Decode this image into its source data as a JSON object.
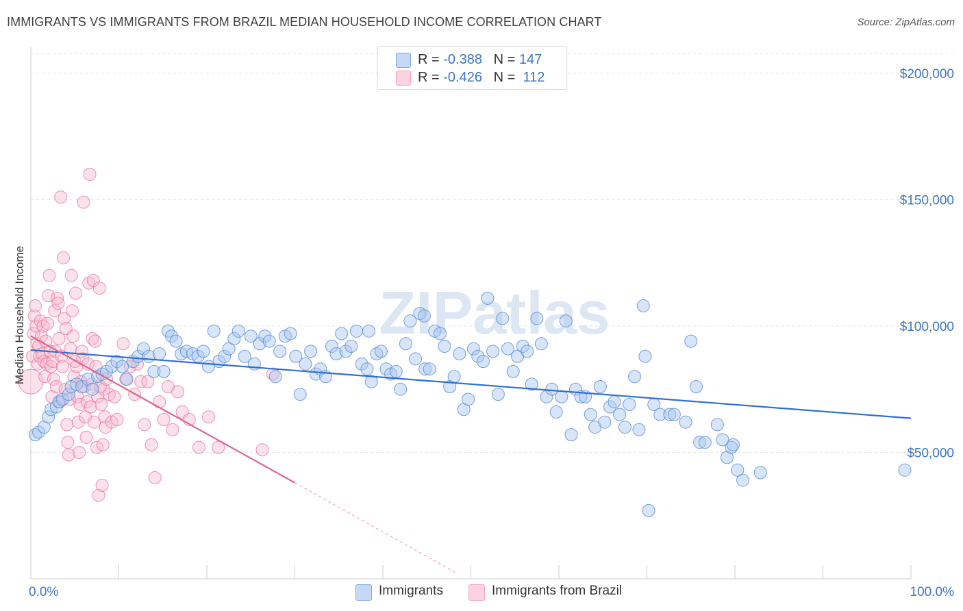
{
  "title": "IMMIGRANTS VS IMMIGRANTS FROM BRAZIL MEDIAN HOUSEHOLD INCOME CORRELATION CHART",
  "source": "Source: ZipAtlas.com",
  "watermark": "ZIPatlas",
  "legend": {
    "rows": [
      {
        "r_label": "R = ",
        "r_value": "-0.388",
        "n_label": "N = ",
        "n_value": "147",
        "color": "#7ea9e8"
      },
      {
        "r_label": "R = ",
        "r_value": "-0.426",
        "n_label": "N = ",
        "n_value": "112",
        "color": "#f3a3bd"
      }
    ]
  },
  "bottom_legend": [
    {
      "label": "Immigrants",
      "color": "#7ea9e8"
    },
    {
      "label": "Immigrants from Brazil",
      "color": "#f3a3bd"
    }
  ],
  "colors": {
    "blue_fill": "#a9c6f0",
    "blue_stroke": "#5b8fd8",
    "blue_line": "#2f6fcf",
    "pink_fill": "#f7bccf",
    "pink_stroke": "#e8789f",
    "pink_line": "#e0668f",
    "axis_label": "#3b76c6",
    "grid": "#e3e3e3"
  },
  "chart_data": {
    "type": "scatter",
    "title": "IMMIGRANTS VS IMMIGRANTS FROM BRAZIL MEDIAN HOUSEHOLD INCOME CORRELATION CHART",
    "xlabel": "",
    "ylabel": "Median Household Income",
    "xlim": [
      0,
      100
    ],
    "ylim": [
      0,
      210000
    ],
    "x_tick_labels": [
      "0.0%",
      "100.0%"
    ],
    "y_ticks": [
      50000,
      100000,
      150000,
      200000
    ],
    "y_tick_labels": [
      "$50,000",
      "$100,000",
      "$150,000",
      "$200,000"
    ],
    "series": [
      {
        "name": "Immigrants",
        "R": -0.388,
        "N": 147,
        "trend": {
          "x0": 0,
          "y0": 90500,
          "x1": 100,
          "y1": 63500
        },
        "points": [
          [
            0.5,
            57000
          ],
          [
            0.9,
            58000
          ],
          [
            1.5,
            60000
          ],
          [
            2.0,
            64000
          ],
          [
            2.3,
            67000
          ],
          [
            2.9,
            68000
          ],
          [
            3.2,
            70000
          ],
          [
            3.6,
            71000
          ],
          [
            4.3,
            73000
          ],
          [
            4.6,
            76000
          ],
          [
            5.2,
            77000
          ],
          [
            5.8,
            76000
          ],
          [
            6.5,
            79000
          ],
          [
            7.0,
            75000
          ],
          [
            7.6,
            80000
          ],
          [
            8.1,
            81000
          ],
          [
            8.6,
            82000
          ],
          [
            9.2,
            84000
          ],
          [
            9.8,
            86000
          ],
          [
            10.4,
            84000
          ],
          [
            10.9,
            79000
          ],
          [
            11.6,
            86000
          ],
          [
            12.2,
            88000
          ],
          [
            12.8,
            91000
          ],
          [
            13.4,
            88000
          ],
          [
            14.0,
            82000
          ],
          [
            14.6,
            89000
          ],
          [
            15.1,
            82000
          ],
          [
            15.6,
            98000
          ],
          [
            16.0,
            96000
          ],
          [
            16.5,
            94000
          ],
          [
            17.1,
            89000
          ],
          [
            17.7,
            90000
          ],
          [
            18.4,
            89000
          ],
          [
            19.0,
            88000
          ],
          [
            19.6,
            90000
          ],
          [
            20.2,
            84000
          ],
          [
            20.8,
            98000
          ],
          [
            21.4,
            86000
          ],
          [
            22.0,
            88000
          ],
          [
            22.5,
            91000
          ],
          [
            23.1,
            95000
          ],
          [
            23.6,
            98000
          ],
          [
            24.3,
            88000
          ],
          [
            25.0,
            96000
          ],
          [
            25.4,
            85000
          ],
          [
            26.0,
            93000
          ],
          [
            26.6,
            96000
          ],
          [
            27.1,
            94000
          ],
          [
            27.8,
            80000
          ],
          [
            28.3,
            90000
          ],
          [
            28.9,
            96000
          ],
          [
            29.5,
            97000
          ],
          [
            30.1,
            88000
          ],
          [
            30.6,
            73000
          ],
          [
            31.2,
            85000
          ],
          [
            31.8,
            90000
          ],
          [
            32.4,
            81000
          ],
          [
            32.9,
            83000
          ],
          [
            33.5,
            80000
          ],
          [
            34.2,
            92000
          ],
          [
            34.7,
            89000
          ],
          [
            35.3,
            97000
          ],
          [
            35.8,
            90000
          ],
          [
            36.4,
            92000
          ],
          [
            37.0,
            98000
          ],
          [
            37.6,
            85000
          ],
          [
            38.2,
            83000
          ],
          [
            38.7,
            78000
          ],
          [
            39.3,
            89000
          ],
          [
            39.8,
            90000
          ],
          [
            40.4,
            83000
          ],
          [
            40.9,
            81000
          ],
          [
            41.5,
            82000
          ],
          [
            42.0,
            75000
          ],
          [
            42.6,
            93000
          ],
          [
            43.1,
            102000
          ],
          [
            43.7,
            87000
          ],
          [
            44.2,
            105000
          ],
          [
            44.8,
            83000
          ],
          [
            45.3,
            83000
          ],
          [
            45.9,
            98000
          ],
          [
            46.5,
            97000
          ],
          [
            47.0,
            92000
          ],
          [
            47.6,
            76000
          ],
          [
            48.1,
            80000
          ],
          [
            48.7,
            89000
          ],
          [
            49.2,
            67000
          ],
          [
            49.7,
            71000
          ],
          [
            50.3,
            91000
          ],
          [
            50.8,
            88000
          ],
          [
            51.4,
            86000
          ],
          [
            51.9,
            111000
          ],
          [
            52.5,
            90000
          ],
          [
            53.1,
            73000
          ],
          [
            53.6,
            103000
          ],
          [
            54.2,
            91000
          ],
          [
            54.8,
            82000
          ],
          [
            55.3,
            88000
          ],
          [
            55.9,
            92000
          ],
          [
            56.4,
            90000
          ],
          [
            56.9,
            77000
          ],
          [
            57.5,
            103000
          ],
          [
            58.0,
            93000
          ],
          [
            58.6,
            72000
          ],
          [
            59.2,
            75000
          ],
          [
            59.7,
            66000
          ],
          [
            60.3,
            72000
          ],
          [
            60.8,
            102000
          ],
          [
            61.4,
            57000
          ],
          [
            61.9,
            75000
          ],
          [
            62.5,
            72000
          ],
          [
            63.0,
            72000
          ],
          [
            63.6,
            65000
          ],
          [
            64.1,
            60000
          ],
          [
            64.7,
            76000
          ],
          [
            65.2,
            62000
          ],
          [
            65.8,
            68000
          ],
          [
            66.3,
            70000
          ],
          [
            66.9,
            65000
          ],
          [
            67.5,
            60000
          ],
          [
            68.0,
            69000
          ],
          [
            68.6,
            80000
          ],
          [
            69.1,
            59000
          ],
          [
            69.6,
            108000
          ],
          [
            69.8,
            88000
          ],
          [
            70.2,
            27000
          ],
          [
            70.8,
            69000
          ],
          [
            71.5,
            65000
          ],
          [
            72.6,
            65000
          ],
          [
            73.1,
            65000
          ],
          [
            74.4,
            62000
          ],
          [
            75.0,
            94000
          ],
          [
            75.6,
            76000
          ],
          [
            76.0,
            54000
          ],
          [
            76.6,
            54000
          ],
          [
            78.0,
            61000
          ],
          [
            78.6,
            55000
          ],
          [
            79.1,
            48000
          ],
          [
            79.6,
            52000
          ],
          [
            79.8,
            53000
          ],
          [
            80.3,
            43000
          ],
          [
            80.9,
            39000
          ],
          [
            82.9,
            42000
          ],
          [
            99.3,
            43000
          ],
          [
            44.7,
            104000
          ],
          [
            38.4,
            98000
          ]
        ]
      },
      {
        "name": "Immigrants from Brazil",
        "R": -0.426,
        "N": 112,
        "trend": {
          "x0": 0,
          "y0": 96000,
          "x1": 30,
          "y1": 38000,
          "dashed_to": {
            "x": 48.5,
            "y": 2000
          }
        },
        "points": [
          [
            0.0,
            78000
          ],
          [
            0.2,
            88000
          ],
          [
            0.3,
            97000
          ],
          [
            0.4,
            104000
          ],
          [
            0.5,
            108000
          ],
          [
            0.6,
            100000
          ],
          [
            0.7,
            93000
          ],
          [
            0.8,
            85000
          ],
          [
            0.9,
            92000
          ],
          [
            1.0,
            88000
          ],
          [
            1.1,
            102000
          ],
          [
            1.2,
            96000
          ],
          [
            1.3,
            89000
          ],
          [
            1.4,
            100000
          ],
          [
            1.5,
            86000
          ],
          [
            1.6,
            80000
          ],
          [
            1.7,
            94000
          ],
          [
            1.8,
            85000
          ],
          [
            1.9,
            101000
          ],
          [
            2.0,
            112000
          ],
          [
            2.1,
            120000
          ],
          [
            2.2,
            90000
          ],
          [
            2.3,
            84000
          ],
          [
            2.4,
            72000
          ],
          [
            2.5,
            86000
          ],
          [
            2.6,
            79000
          ],
          [
            2.7,
            106000
          ],
          [
            2.8,
            90000
          ],
          [
            2.9,
            76000
          ],
          [
            3.0,
            111000
          ],
          [
            3.1,
            109000
          ],
          [
            3.2,
            95000
          ],
          [
            3.3,
            70000
          ],
          [
            3.4,
            151000
          ],
          [
            3.5,
            88000
          ],
          [
            3.6,
            84000
          ],
          [
            3.7,
            127000
          ],
          [
            3.8,
            103000
          ],
          [
            3.9,
            75000
          ],
          [
            4.0,
            99000
          ],
          [
            4.1,
            61000
          ],
          [
            4.2,
            54000
          ],
          [
            4.3,
            49000
          ],
          [
            4.4,
            71000
          ],
          [
            4.5,
            91000
          ],
          [
            4.6,
            120000
          ],
          [
            4.7,
            106000
          ],
          [
            4.8,
            96000
          ],
          [
            4.9,
            80000
          ],
          [
            5.0,
            86000
          ],
          [
            5.1,
            113000
          ],
          [
            5.2,
            84000
          ],
          [
            5.3,
            72000
          ],
          [
            5.4,
            62000
          ],
          [
            5.5,
            50000
          ],
          [
            5.6,
            69000
          ],
          [
            5.7,
            78000
          ],
          [
            5.8,
            90000
          ],
          [
            5.9,
            87000
          ],
          [
            6.0,
            149000
          ],
          [
            6.1,
            76000
          ],
          [
            6.2,
            64000
          ],
          [
            6.3,
            56000
          ],
          [
            6.4,
            70000
          ],
          [
            6.5,
            85000
          ],
          [
            6.6,
            117000
          ],
          [
            6.7,
            160000
          ],
          [
            6.8,
            68000
          ],
          [
            6.9,
            77000
          ],
          [
            7.0,
            95000
          ],
          [
            7.1,
            118000
          ],
          [
            7.2,
            62000
          ],
          [
            7.3,
            94000
          ],
          [
            7.4,
            84000
          ],
          [
            7.5,
            52000
          ],
          [
            7.6,
            72000
          ],
          [
            7.7,
            33000
          ],
          [
            7.8,
            115000
          ],
          [
            7.9,
            76000
          ],
          [
            8.0,
            69000
          ],
          [
            8.1,
            37000
          ],
          [
            8.2,
            53000
          ],
          [
            8.3,
            75000
          ],
          [
            8.4,
            64000
          ],
          [
            8.5,
            60000
          ],
          [
            8.6,
            79000
          ],
          [
            8.9,
            73000
          ],
          [
            9.2,
            62000
          ],
          [
            9.5,
            72000
          ],
          [
            9.8,
            63000
          ],
          [
            10.5,
            93000
          ],
          [
            10.8,
            79000
          ],
          [
            11.3,
            84000
          ],
          [
            11.8,
            73000
          ],
          [
            12.1,
            85000
          ],
          [
            12.5,
            78000
          ],
          [
            12.9,
            61000
          ],
          [
            13.3,
            78000
          ],
          [
            13.7,
            53000
          ],
          [
            14.1,
            40000
          ],
          [
            14.6,
            70000
          ],
          [
            15.1,
            63000
          ],
          [
            15.6,
            76000
          ],
          [
            16.1,
            59000
          ],
          [
            16.7,
            74000
          ],
          [
            17.2,
            66000
          ],
          [
            18.0,
            63000
          ],
          [
            19.1,
            52000
          ],
          [
            20.2,
            64000
          ],
          [
            21.3,
            52000
          ],
          [
            26.3,
            51000
          ],
          [
            27.5,
            81000
          ]
        ]
      }
    ]
  }
}
